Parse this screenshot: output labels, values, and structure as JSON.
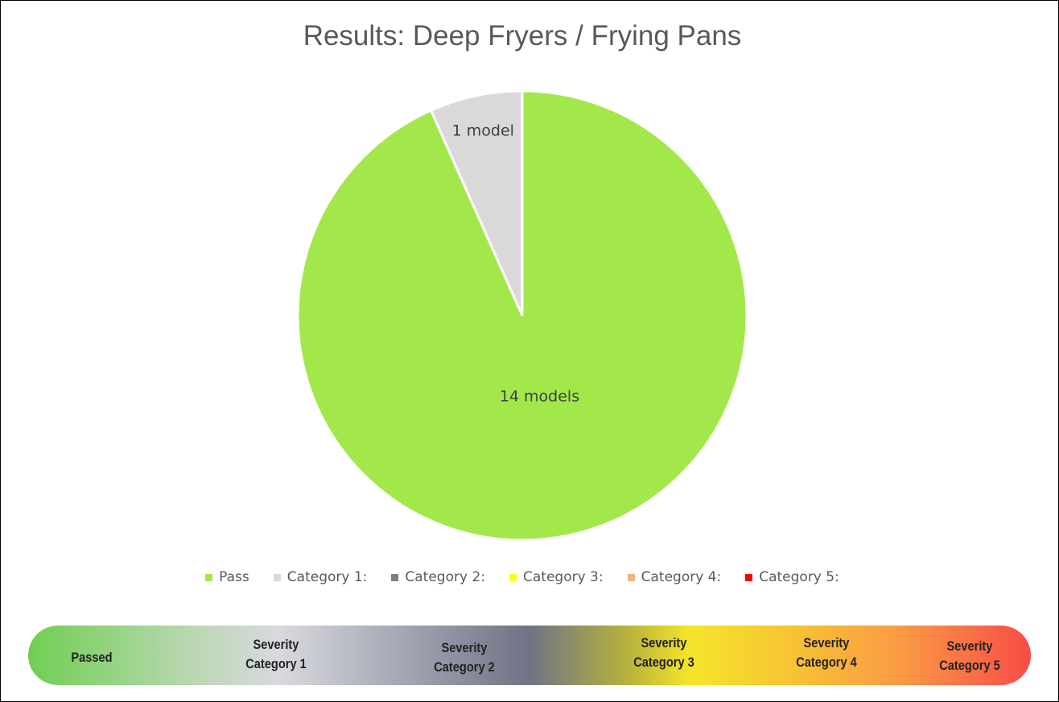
{
  "chart_data": {
    "type": "pie",
    "title": "Results:  Deep Fryers / Frying Pans",
    "slices": [
      {
        "name": "Category 1:",
        "value": 1,
        "label": "1 model",
        "color": "#d9d9d9"
      },
      {
        "name": "Pass",
        "value": 14,
        "label": "14 models",
        "color": "#a3e84b"
      }
    ],
    "legend": {
      "placement": "bottom",
      "entries": [
        {
          "name": "Pass",
          "color": "#a3e84b"
        },
        {
          "name": "Category 1:",
          "color": "#d9d9d9"
        },
        {
          "name": "Category 2:",
          "color": "#7f7f7f"
        },
        {
          "name": "Category 3:",
          "color": "#ffff00"
        },
        {
          "name": "Category 4:",
          "color": "#f4b183"
        },
        {
          "name": "Category 5:",
          "color": "#ff0000"
        }
      ]
    }
  },
  "severity_scale": [
    {
      "line1": "Passed",
      "line2": ""
    },
    {
      "line1": "Severity",
      "line2": "Category 1"
    },
    {
      "line1": "Severity",
      "line2": "Category 2"
    },
    {
      "line1": "Severity",
      "line2": "Category 3"
    },
    {
      "line1": "Severity",
      "line2": "Category 4"
    },
    {
      "line1": "Severity",
      "line2": "Category 5"
    }
  ]
}
